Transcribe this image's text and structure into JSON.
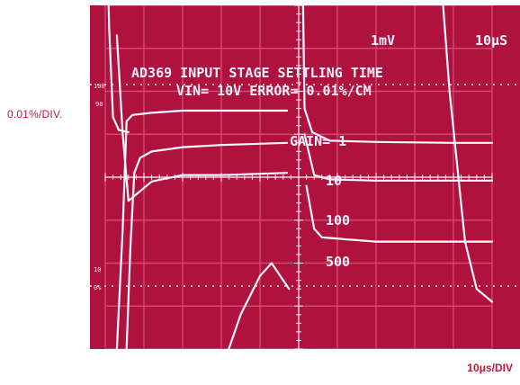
{
  "left_axis_label": "0.01%/DIV.",
  "bottom_axis_label": "10μs/DIV",
  "scope": {
    "title": "AD369  INPUT  STAGE  SETTLING  TIME",
    "settings": "VIN= 10V   ERROR= 0.01%/CM",
    "vert_sensitivity": "1mV",
    "time_base": "10μS",
    "left_marks": [
      "100",
      "90",
      "10",
      "0%"
    ]
  },
  "chart_data": {
    "type": "line",
    "title": "AD369  INPUT  STAGE  SETTLING  TIME",
    "subtitle": "VIN= 10V   ERROR= 0.01%/CM",
    "xlabel": "10μs/DIV",
    "ylabel": "0.01%/DIV.",
    "grid": true,
    "annotations": [
      "GAIN= 1",
      "10",
      "100",
      "500"
    ],
    "series": [
      {
        "name": "GAIN= 1",
        "x": [
          0.3,
          0.45,
          0.6,
          0.8,
          1.2,
          2,
          3,
          4.7
        ],
        "y": [
          7.3,
          5.0,
          3.45,
          3.6,
          3.9,
          4.05,
          4.05,
          4.1
        ]
      },
      {
        "name": "10",
        "x": [
          0.3,
          0.45,
          0.55,
          0.7,
          1.2,
          2,
          3,
          4.7
        ],
        "y": [
          0.0,
          2.8,
          5.3,
          5.45,
          5.5,
          5.55,
          5.55,
          5.55
        ]
      },
      {
        "name": "100",
        "x": [
          0.55,
          0.65,
          0.75,
          0.9,
          1.2,
          2,
          3,
          4.7
        ],
        "y": [
          0.0,
          2.4,
          4.1,
          4.45,
          4.6,
          4.7,
          4.75,
          4.8
        ]
      },
      {
        "name": "500",
        "x": [
          3.0,
          3.5,
          4.0,
          4.3,
          4.6,
          4.75
        ],
        "y": [
          -0.5,
          0.8,
          1.7,
          2.0,
          1.6,
          1.4
        ]
      }
    ]
  }
}
